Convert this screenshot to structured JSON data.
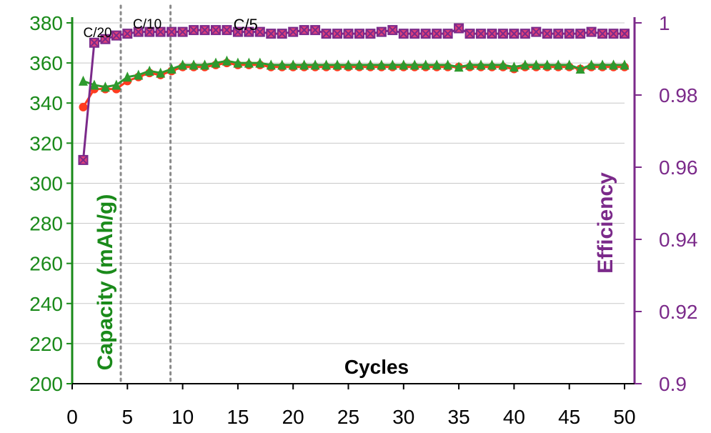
{
  "chart_data": {
    "type": "line",
    "xlabel": "Cycles",
    "ylabel_left": "Capacity (mAh/g)",
    "ylabel_right": "Efficiency",
    "xlim": [
      0,
      50
    ],
    "ylim_left": [
      200,
      380
    ],
    "ylim_right": [
      0.9,
      1.0
    ],
    "x_ticks": [
      "0",
      "5",
      "10",
      "15",
      "20",
      "25",
      "30",
      "35",
      "40",
      "45",
      "50"
    ],
    "y_left_ticks": [
      "200",
      "220",
      "240",
      "260",
      "280",
      "300",
      "320",
      "340",
      "360",
      "380"
    ],
    "y_right_ticks": [
      "0.9",
      "0.92",
      "0.94",
      "0.96",
      "0.98",
      "1"
    ],
    "grid": "horizontal",
    "rate_annotations": [
      {
        "label": "C/20",
        "x": 2.3
      },
      {
        "label": "C/10",
        "x": 6.8
      },
      {
        "label": "C/5",
        "x": 15.7
      }
    ],
    "rate_boundaries_x": [
      4.4,
      8.9
    ],
    "colors": {
      "left_axis": "#1a8a1a",
      "right_axis": "#7b2a8a",
      "charge_series": "#ff3b1f",
      "discharge_series": "#2e9a2e",
      "efficiency_series": "#7b2a8a",
      "efficiency_marker": "#e0407a",
      "grid": "#c8c8c8",
      "boundary": "#8a8a8a"
    },
    "series": [
      {
        "axis": "left",
        "marker": "circle",
        "x": [
          1,
          2,
          3,
          4,
          5,
          6,
          7,
          8,
          9,
          10,
          11,
          12,
          13,
          14,
          15,
          16,
          17,
          18,
          19,
          20,
          21,
          22,
          23,
          24,
          25,
          26,
          27,
          28,
          29,
          30,
          31,
          32,
          33,
          34,
          35,
          36,
          37,
          38,
          39,
          40,
          41,
          42,
          43,
          44,
          45,
          46,
          47,
          48,
          49,
          50
        ],
        "values": [
          338,
          347,
          347,
          347,
          351,
          353,
          355,
          354,
          356,
          358,
          358,
          358,
          359,
          360,
          359,
          359,
          359,
          358,
          358,
          358,
          358,
          358,
          358,
          358,
          358,
          358,
          358,
          358,
          358,
          358,
          358,
          358,
          358,
          358,
          358,
          358,
          358,
          358,
          358,
          357,
          358,
          358,
          358,
          358,
          358,
          357,
          358,
          358,
          358,
          358
        ]
      },
      {
        "axis": "left",
        "marker": "triangle",
        "x": [
          1,
          2,
          3,
          4,
          5,
          6,
          7,
          8,
          9,
          10,
          11,
          12,
          13,
          14,
          15,
          16,
          17,
          18,
          19,
          20,
          21,
          22,
          23,
          24,
          25,
          26,
          27,
          28,
          29,
          30,
          31,
          32,
          33,
          34,
          35,
          36,
          37,
          38,
          39,
          40,
          41,
          42,
          43,
          44,
          45,
          46,
          47,
          48,
          49,
          50
        ],
        "values": [
          351,
          349,
          348,
          349,
          353,
          354,
          356,
          355,
          357,
          359,
          359,
          359,
          360,
          361,
          360,
          360,
          360,
          359,
          359,
          359,
          359,
          359,
          359,
          359,
          359,
          359,
          359,
          359,
          359,
          359,
          359,
          359,
          359,
          359,
          358,
          359,
          359,
          359,
          359,
          358,
          359,
          359,
          359,
          359,
          359,
          357,
          359,
          359,
          359,
          359
        ]
      },
      {
        "axis": "right",
        "marker": "square-x",
        "x": [
          1,
          2,
          3,
          4,
          5,
          6,
          7,
          8,
          9,
          10,
          11,
          12,
          13,
          14,
          15,
          16,
          17,
          18,
          19,
          20,
          21,
          22,
          23,
          24,
          25,
          26,
          27,
          28,
          29,
          30,
          31,
          32,
          33,
          34,
          35,
          36,
          37,
          38,
          39,
          40,
          41,
          42,
          43,
          44,
          45,
          46,
          47,
          48,
          49,
          50
        ],
        "values": [
          0.962,
          0.9945,
          0.9955,
          0.9965,
          0.997,
          0.9975,
          0.9975,
          0.9975,
          0.9975,
          0.9975,
          0.998,
          0.998,
          0.998,
          0.998,
          0.9975,
          0.9975,
          0.9975,
          0.997,
          0.997,
          0.9975,
          0.998,
          0.998,
          0.997,
          0.997,
          0.997,
          0.997,
          0.997,
          0.9975,
          0.998,
          0.997,
          0.997,
          0.997,
          0.997,
          0.997,
          0.9985,
          0.997,
          0.997,
          0.997,
          0.997,
          0.997,
          0.997,
          0.9975,
          0.997,
          0.997,
          0.997,
          0.997,
          0.9975,
          0.997,
          0.997,
          0.997
        ]
      }
    ]
  }
}
